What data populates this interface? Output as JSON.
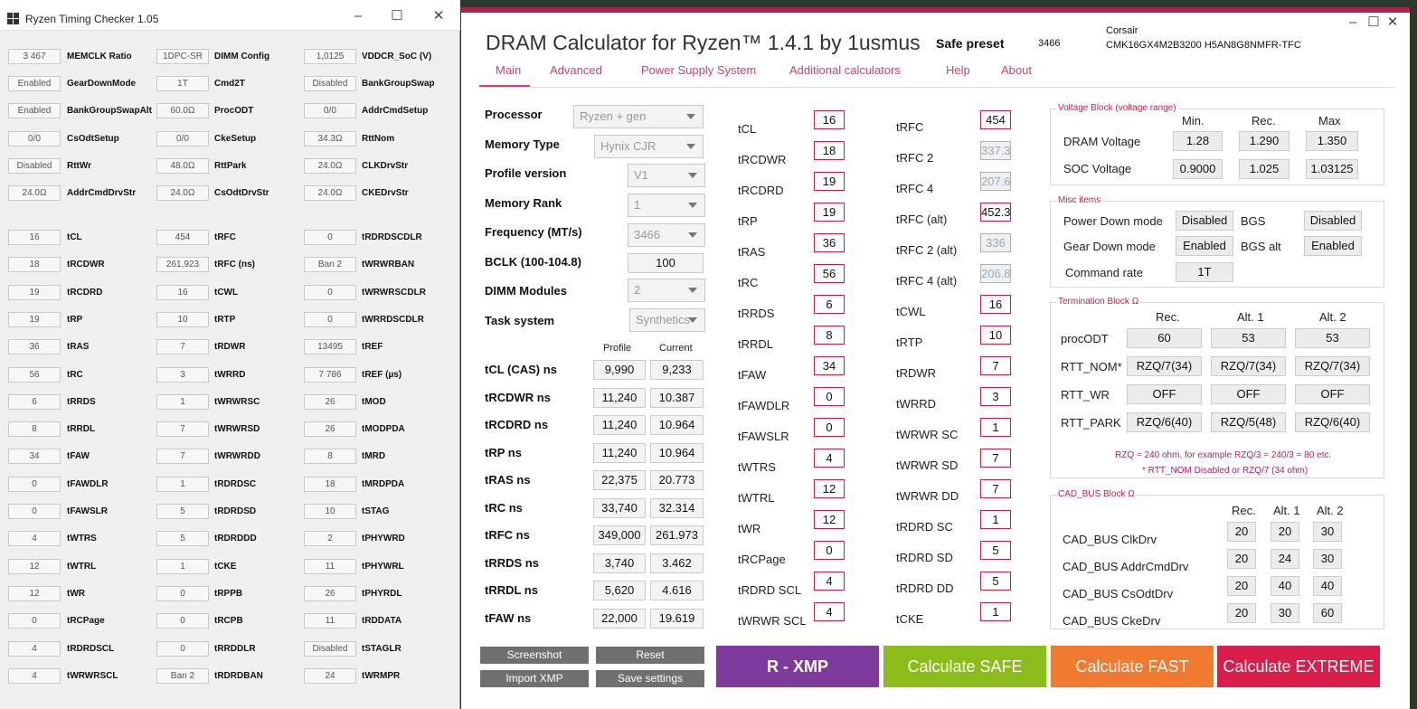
{
  "rtc": {
    "title": "Ryzen Timing Checker 1.05",
    "rows": [
      [
        {
          "v": "3 467",
          "l": "MEMCLK Ratio"
        },
        {
          "v": "1DPC-SR",
          "l": "DIMM Config"
        },
        {
          "v": "1,0125",
          "l": "VDDCR_SoC (V)"
        }
      ],
      [
        {
          "v": "Enabled",
          "l": "GearDownMode"
        },
        {
          "v": "1T",
          "l": "Cmd2T"
        },
        {
          "v": "Disabled",
          "l": "BankGroupSwap"
        }
      ],
      [
        {
          "v": "Enabled",
          "l": "BankGroupSwapAlt"
        },
        {
          "v": "60.0Ω",
          "l": "ProcODT"
        },
        {
          "v": "0/0",
          "l": "AddrCmdSetup"
        }
      ],
      [
        {
          "v": "0/0",
          "l": "CsOdtSetup"
        },
        {
          "v": "0/0",
          "l": "CkeSetup"
        },
        {
          "v": "34.3Ω",
          "l": "RttNom"
        }
      ],
      [
        {
          "v": "Disabled",
          "l": "RttWr"
        },
        {
          "v": "48.0Ω",
          "l": "RttPark"
        },
        {
          "v": "24.0Ω",
          "l": "CLKDrvStr"
        }
      ],
      [
        {
          "v": "24.0Ω",
          "l": "AddrCmdDrvStr"
        },
        {
          "v": "24.0Ω",
          "l": "CsOdtDrvStr"
        },
        {
          "v": "24.0Ω",
          "l": "CKEDrvStr"
        }
      ],
      [
        {
          "v": "16",
          "l": "tCL"
        },
        {
          "v": "454",
          "l": "tRFC"
        },
        {
          "v": "0",
          "l": "tRDRDSCDLR"
        }
      ],
      [
        {
          "v": "18",
          "l": "tRCDWR"
        },
        {
          "v": "261,923",
          "l": "tRFC (ns)"
        },
        {
          "v": "Ban 2",
          "l": "tWRWRBAN"
        }
      ],
      [
        {
          "v": "19",
          "l": "tRCDRD"
        },
        {
          "v": "16",
          "l": "tCWL"
        },
        {
          "v": "0",
          "l": "tWRWRSCDLR"
        }
      ],
      [
        {
          "v": "19",
          "l": "tRP"
        },
        {
          "v": "10",
          "l": "tRTP"
        },
        {
          "v": "0",
          "l": "tWRRDSCDLR"
        }
      ],
      [
        {
          "v": "36",
          "l": "tRAS"
        },
        {
          "v": "7",
          "l": "tRDWR"
        },
        {
          "v": "13495",
          "l": "tREF"
        }
      ],
      [
        {
          "v": "56",
          "l": "tRC"
        },
        {
          "v": "3",
          "l": "tWRRD"
        },
        {
          "v": "7 786",
          "l": "tREF (µs)"
        }
      ],
      [
        {
          "v": "6",
          "l": "tRRDS"
        },
        {
          "v": "1",
          "l": "tWRWRSC"
        },
        {
          "v": "26",
          "l": "tMOD"
        }
      ],
      [
        {
          "v": "8",
          "l": "tRRDL"
        },
        {
          "v": "7",
          "l": "tWRWRSD"
        },
        {
          "v": "26",
          "l": "tMODPDA"
        }
      ],
      [
        {
          "v": "34",
          "l": "tFAW"
        },
        {
          "v": "7",
          "l": "tWRWRDD"
        },
        {
          "v": "8",
          "l": "tMRD"
        }
      ],
      [
        {
          "v": "0",
          "l": "tFAWDLR"
        },
        {
          "v": "1",
          "l": "tRDRDSC"
        },
        {
          "v": "18",
          "l": "tMRDPDA"
        }
      ],
      [
        {
          "v": "0",
          "l": "tFAWSLR"
        },
        {
          "v": "5",
          "l": "tRDRDSD"
        },
        {
          "v": "10",
          "l": "tSTAG"
        }
      ],
      [
        {
          "v": "4",
          "l": "tWTRS"
        },
        {
          "v": "5",
          "l": "tRDRDDD"
        },
        {
          "v": "2",
          "l": "tPHYWRD"
        }
      ],
      [
        {
          "v": "12",
          "l": "tWTRL"
        },
        {
          "v": "1",
          "l": "tCKE"
        },
        {
          "v": "11",
          "l": "tPHYWRL"
        }
      ],
      [
        {
          "v": "12",
          "l": "tWR"
        },
        {
          "v": "0",
          "l": "tRPPB"
        },
        {
          "v": "26",
          "l": "tPHYRDL"
        }
      ],
      [
        {
          "v": "0",
          "l": "tRCPage"
        },
        {
          "v": "0",
          "l": "tRCPB"
        },
        {
          "v": "11",
          "l": "tRDDATA"
        }
      ],
      [
        {
          "v": "4",
          "l": "tRDRDSCL"
        },
        {
          "v": "0",
          "l": "tRRDDLR"
        },
        {
          "v": "Disabled",
          "l": "tSTAGLR"
        }
      ],
      [
        {
          "v": "4",
          "l": "tWRWRSCL"
        },
        {
          "v": "Ban 2",
          "l": "tRDRDBAN"
        },
        {
          "v": "24",
          "l": "tWRMPR"
        }
      ]
    ]
  },
  "dc": {
    "title": "DRAM Calculator for Ryzen™ 1.4.1 by 1usmus",
    "preset_label": "Safe preset",
    "preset_value": "3466",
    "brand": "Corsair",
    "part": "CMK16GX4M2B3200 H5AN8G8NMFR-TFC",
    "tabs": [
      "Main",
      "Advanced",
      "Power Supply System",
      "Additional calculators",
      "Help",
      "About"
    ],
    "params": [
      {
        "label": "Processor",
        "value": "Ryzen + gen"
      },
      {
        "label": "Memory Type",
        "value": "Hynix CJR"
      },
      {
        "label": "Profile version",
        "value": "V1"
      },
      {
        "label": "Memory Rank",
        "value": "1"
      },
      {
        "label": "Frequency (MT/s)",
        "value": "3466"
      },
      {
        "label": "BCLK (100-104.8)",
        "value": "100"
      },
      {
        "label": "DIMM Modules",
        "value": "2"
      },
      {
        "label": "Task system",
        "value": "Synthetics"
      }
    ],
    "ns_headers": [
      "Profile",
      "Current"
    ],
    "ns": [
      {
        "label": "tCL (CAS) ns",
        "p": "9,990",
        "c": "9,233"
      },
      {
        "label": "tRCDWR ns",
        "p": "11,240",
        "c": "10.387"
      },
      {
        "label": "tRCDRD ns",
        "p": "11,240",
        "c": "10.964"
      },
      {
        "label": "tRP ns",
        "p": "11,240",
        "c": "10.964"
      },
      {
        "label": "tRAS ns",
        "p": "22,375",
        "c": "20.773"
      },
      {
        "label": "tRC ns",
        "p": "33,740",
        "c": "32.314"
      },
      {
        "label": "tRFC ns",
        "p": "349,000",
        "c": "261.973"
      },
      {
        "label": "tRRDS ns",
        "p": "3,740",
        "c": "3.462"
      },
      {
        "label": "tRRDL ns",
        "p": "5,620",
        "c": "4.616"
      },
      {
        "label": "tFAW ns",
        "p": "22,000",
        "c": "19.619"
      }
    ],
    "t1": [
      {
        "l": "tCL",
        "v": "16"
      },
      {
        "l": "tRCDWR",
        "v": "18"
      },
      {
        "l": "tRCDRD",
        "v": "19"
      },
      {
        "l": "tRP",
        "v": "19"
      },
      {
        "l": "tRAS",
        "v": "36"
      },
      {
        "l": "tRC",
        "v": "56"
      },
      {
        "l": "tRRDS",
        "v": "6"
      },
      {
        "l": "tRRDL",
        "v": "8"
      },
      {
        "l": "tFAW",
        "v": "34"
      },
      {
        "l": "tFAWDLR",
        "v": "0"
      },
      {
        "l": "tFAWSLR",
        "v": "0"
      },
      {
        "l": "tWTRS",
        "v": "4"
      },
      {
        "l": "tWTRL",
        "v": "12"
      },
      {
        "l": "tWR",
        "v": "12"
      },
      {
        "l": "tRCPage",
        "v": "0"
      },
      {
        "l": "tRDRD SCL",
        "v": "4"
      },
      {
        "l": "tWRWR SCL",
        "v": "4"
      }
    ],
    "t2": [
      {
        "l": "tRFC",
        "v": "454"
      },
      {
        "l": "tRFC 2",
        "v": "337.3"
      },
      {
        "l": "tRFC 4",
        "v": "207.6"
      },
      {
        "l": "tRFC (alt)",
        "v": "452.3"
      },
      {
        "l": "tRFC 2 (alt)",
        "v": "336"
      },
      {
        "l": "tRFC 4 (alt)",
        "v": "206.8"
      },
      {
        "l": "tCWL",
        "v": "16"
      },
      {
        "l": "tRTP",
        "v": "10"
      },
      {
        "l": "tRDWR",
        "v": "7"
      },
      {
        "l": "tWRRD",
        "v": "3"
      },
      {
        "l": "tWRWR SC",
        "v": "1"
      },
      {
        "l": "tWRWR SD",
        "v": "7"
      },
      {
        "l": "tWRWR DD",
        "v": "7"
      },
      {
        "l": "tRDRD SC",
        "v": "1"
      },
      {
        "l": "tRDRD SD",
        "v": "5"
      },
      {
        "l": "tRDRD DD",
        "v": "5"
      },
      {
        "l": "tCKE",
        "v": "1"
      }
    ],
    "voltage": {
      "title": "Voltage Block (voltage range)",
      "headers": [
        "Min.",
        "Rec.",
        "Max"
      ],
      "rows": [
        {
          "l": "DRAM Voltage",
          "v": [
            "1.28",
            "1.290",
            "1.350"
          ]
        },
        {
          "l": "SOC Voltage",
          "v": [
            "0.9000",
            "1.025",
            "1.03125"
          ]
        }
      ]
    },
    "misc": {
      "title": "Misc items",
      "rows": [
        [
          "Power Down mode",
          "Disabled",
          "BGS",
          "Disabled"
        ],
        [
          "Gear Down mode",
          "Enabled",
          "BGS alt",
          "Enabled"
        ]
      ],
      "cmd_label": "Command rate",
      "cmd_value": "1T"
    },
    "term": {
      "title": "Termination Block Ω",
      "headers": [
        "Rec.",
        "Alt. 1",
        "Alt. 2"
      ],
      "rows": [
        {
          "l": "procODT",
          "v": [
            "60",
            "53",
            "53"
          ]
        },
        {
          "l": "RTT_NOM*",
          "v": [
            "RZQ/7(34)",
            "RZQ/7(34)",
            "RZQ/7(34)"
          ]
        },
        {
          "l": "RTT_WR",
          "v": [
            "OFF",
            "OFF",
            "OFF"
          ]
        },
        {
          "l": "RTT_PARK",
          "v": [
            "RZQ/6(40)",
            "RZQ/5(48)",
            "RZQ/6(40)"
          ]
        }
      ],
      "note1": "RZQ = 240 ohm, for example RZQ/3 = 240/3 = 80 etc.",
      "note2": "* RTT_NOM Disabled or RZQ/7 (34 ohm)"
    },
    "cad": {
      "title": "CAD_BUS Block Ω",
      "headers": [
        "Rec.",
        "Alt. 1",
        "Alt. 2"
      ],
      "rows": [
        {
          "l": "CAD_BUS ClkDrv",
          "v": [
            "20",
            "20",
            "30"
          ]
        },
        {
          "l": "CAD_BUS AddrCmdDrv",
          "v": [
            "20",
            "24",
            "30"
          ]
        },
        {
          "l": "CAD_BUS CsOdtDrv",
          "v": [
            "20",
            "40",
            "40"
          ]
        },
        {
          "l": "CAD_BUS CkeDrv",
          "v": [
            "20",
            "30",
            "60"
          ]
        }
      ]
    },
    "buttons": {
      "screenshot": "Screenshot",
      "reset": "Reset",
      "import_xmp": "Import XMP",
      "save_settings": "Save settings",
      "rxmp": "R - XMP",
      "safe": "Calculate SAFE",
      "fast": "Calculate FAST",
      "extreme": "Calculate EXTREME"
    },
    "colors": {
      "rxmp": "#7d3a9a",
      "safe": "#8cbc1a",
      "fast": "#f07a30",
      "extreme": "#d81e4a",
      "accent": "#c0204a"
    }
  }
}
